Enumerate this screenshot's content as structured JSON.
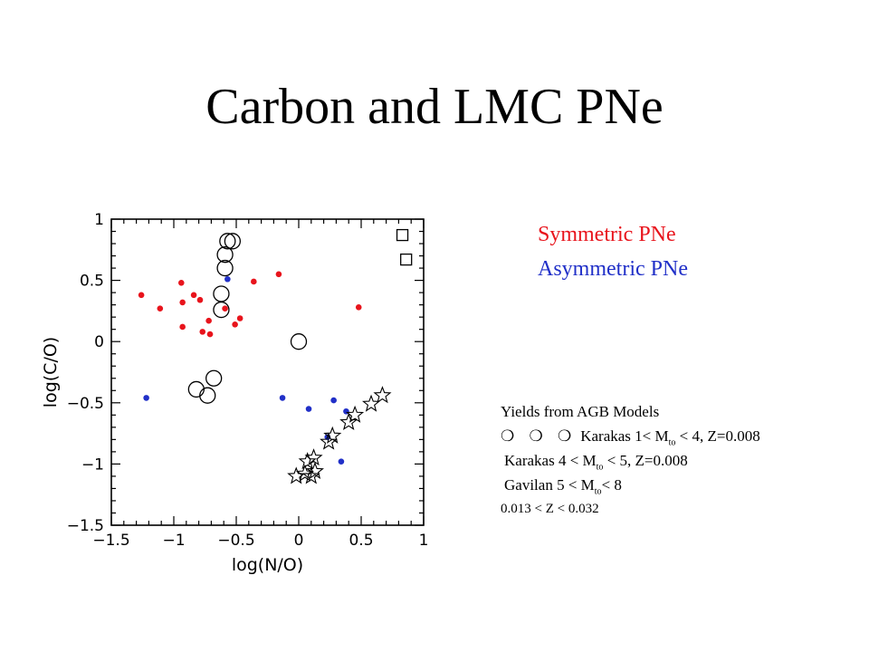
{
  "slide": {
    "title": "Carbon and LMC PNe"
  },
  "legend": {
    "symmetric": "Symmetric PNe",
    "asymmetric": "Asymmetric PNe",
    "symmetric_color": "#e8141c",
    "asymmetric_color": "#2130c8"
  },
  "yields": {
    "heading": "Yields from AGB Models",
    "rows": [
      {
        "glyphs": "❍ ❍ ❍",
        "pre": "Karakas 1< M",
        "sub": "to",
        "post": " < 4, Z=0.008"
      },
      {
        "glyphs": "    ",
        "pre": "Karakas 4 < M",
        "sub": "to",
        "post": " < 5, Z=0.008"
      },
      {
        "glyphs": "   ",
        "pre": "Gavilan 5 < M",
        "sub": "to",
        "post": "< 8"
      }
    ],
    "z_range": "0.013 < Z < 0.032"
  },
  "chart_data": {
    "type": "scatter",
    "xlabel": "log(N/O)",
    "ylabel": "log(C/O)",
    "xlim": [
      -1.5,
      1.0
    ],
    "ylim": [
      -1.5,
      1.0
    ],
    "x_ticks": [
      -1.5,
      -1,
      -0.5,
      0,
      0.5,
      1
    ],
    "x_tick_labels": [
      "−1.5",
      "−1",
      "−0.5",
      "0",
      "0.5",
      "1"
    ],
    "y_ticks": [
      -1.5,
      -1,
      -0.5,
      0,
      0.5,
      1
    ],
    "y_tick_labels": [
      "−1.5",
      "−1",
      "−0.5",
      "0",
      "0.5",
      "1"
    ],
    "grid": false,
    "series": [
      {
        "name": "Symmetric PNe",
        "marker": "dot",
        "color": "#e8141c",
        "points": [
          [
            -1.26,
            0.38
          ],
          [
            -1.11,
            0.27
          ],
          [
            -0.94,
            0.48
          ],
          [
            -0.93,
            0.32
          ],
          [
            -0.93,
            0.12
          ],
          [
            -0.84,
            0.38
          ],
          [
            -0.79,
            0.34
          ],
          [
            -0.77,
            0.08
          ],
          [
            -0.72,
            0.17
          ],
          [
            -0.71,
            0.06
          ],
          [
            -0.59,
            0.27
          ],
          [
            -0.51,
            0.14
          ],
          [
            -0.47,
            0.19
          ],
          [
            -0.36,
            0.49
          ],
          [
            -0.16,
            0.55
          ],
          [
            0.48,
            0.28
          ]
        ]
      },
      {
        "name": "Asymmetric PNe",
        "marker": "dot",
        "color": "#2130c8",
        "points": [
          [
            -1.22,
            -0.46
          ],
          [
            -0.57,
            0.51
          ],
          [
            -0.13,
            -0.46
          ],
          [
            0.08,
            -0.55
          ],
          [
            0.28,
            -0.48
          ],
          [
            0.38,
            -0.57
          ],
          [
            0.23,
            -0.78
          ],
          [
            0.34,
            -0.98
          ]
        ]
      },
      {
        "name": "Karakas 1< Mto < 4, Z=0.008",
        "marker": "open-circle",
        "color": "#000000",
        "points": [
          [
            -0.53,
            0.82
          ],
          [
            -0.57,
            0.82
          ],
          [
            -0.59,
            0.71
          ],
          [
            -0.59,
            0.6
          ],
          [
            -0.62,
            0.39
          ],
          [
            -0.62,
            0.26
          ],
          [
            -0.68,
            -0.3
          ],
          [
            -0.73,
            -0.44
          ],
          [
            -0.82,
            -0.39
          ],
          [
            0.0,
            0.0
          ]
        ]
      },
      {
        "name": "Karakas 4 < Mto < 5, Z=0.008",
        "marker": "open-square",
        "color": "#000000",
        "points": [
          [
            0.83,
            0.87
          ],
          [
            0.86,
            0.67
          ]
        ]
      },
      {
        "name": "Gavilan 5 < Mto< 8",
        "marker": "open-star",
        "color": "#000000",
        "points": [
          [
            0.67,
            -0.44
          ],
          [
            0.58,
            -0.51
          ],
          [
            0.45,
            -0.6
          ],
          [
            0.4,
            -0.66
          ],
          [
            0.27,
            -0.77
          ],
          [
            0.24,
            -0.82
          ],
          [
            0.12,
            -0.95
          ],
          [
            0.07,
            -0.98
          ],
          [
            0.13,
            -1.06
          ],
          [
            0.05,
            -1.08
          ],
          [
            -0.02,
            -1.1
          ],
          [
            0.1,
            -1.1
          ]
        ]
      }
    ]
  }
}
